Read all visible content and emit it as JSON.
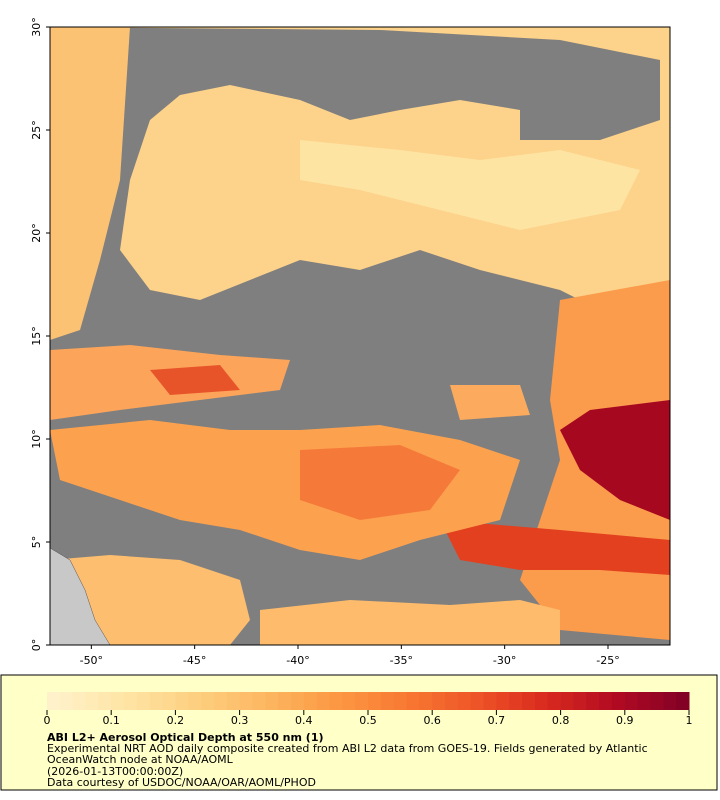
{
  "map": {
    "xlim": [
      -52,
      -22
    ],
    "ylim": [
      0,
      30
    ],
    "xticks": [
      {
        "value": -50,
        "label": "-50°"
      },
      {
        "value": -45,
        "label": "-45°"
      },
      {
        "value": -40,
        "label": "-40°"
      },
      {
        "value": -35,
        "label": "-35°"
      },
      {
        "value": -30,
        "label": "-30°"
      },
      {
        "value": -25,
        "label": "-25°"
      }
    ],
    "yticks": [
      {
        "value": 0,
        "label": "0°"
      },
      {
        "value": 5,
        "label": "5°"
      },
      {
        "value": 10,
        "label": "10°"
      },
      {
        "value": 15,
        "label": "15°"
      },
      {
        "value": 20,
        "label": "20°"
      },
      {
        "value": 25,
        "label": "25°"
      },
      {
        "value": 30,
        "label": "30°"
      }
    ]
  },
  "colorbar": {
    "range": [
      0,
      1
    ],
    "ticks": [
      0,
      0.1,
      0.2,
      0.3,
      0.4,
      0.5,
      0.6,
      0.7,
      0.8,
      0.9,
      1
    ],
    "colors": [
      "#fff3cf",
      "#fee6a8",
      "#fdd283",
      "#fdb863",
      "#fc9a45",
      "#f87a33",
      "#ee5527",
      "#d92a1e",
      "#b00a22",
      "#800026"
    ]
  },
  "caption": {
    "title": "ABI L2+ Aerosol Optical Depth at 550 nm (1)",
    "line1": "Experimental NRT AOD daily composite created from ABI L2 data from GOES-19. Fields generated by Atlantic",
    "line2": "OceanWatch node at NOAA/AOML",
    "line3": "(2026-01-13T00:00:00Z)",
    "line4": "Data courtesy of USDOC/NOAA/OAR/AOML/PHOD"
  }
}
